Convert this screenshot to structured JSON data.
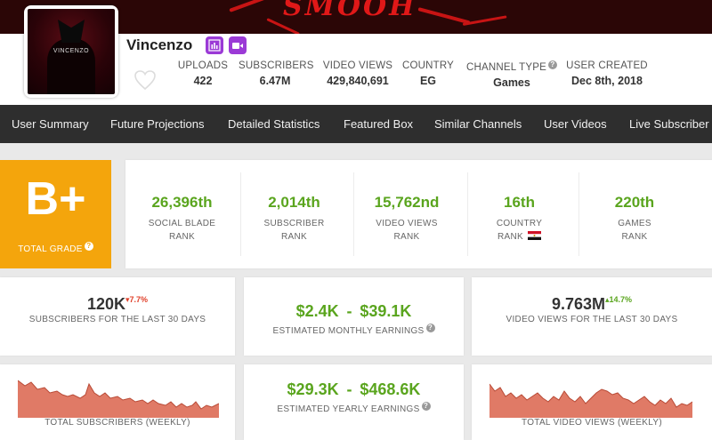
{
  "banner": {
    "text": "SMOOH"
  },
  "channel": {
    "name": "Vincenzo",
    "avatar_text": "VINCENZO",
    "badges": [
      "bar-chart-icon",
      "video-camera-icon"
    ]
  },
  "header_stats": [
    {
      "label": "UPLOADS",
      "value": "422"
    },
    {
      "label": "SUBSCRIBERS",
      "value": "6.47M"
    },
    {
      "label": "VIDEO VIEWS",
      "value": "429,840,691"
    },
    {
      "label": "COUNTRY",
      "value": "EG"
    },
    {
      "label": "CHANNEL TYPE",
      "value": "Games"
    },
    {
      "label": "USER CREATED",
      "value": "Dec 8th, 2018"
    }
  ],
  "nav": [
    "User Summary",
    "Future Projections",
    "Detailed Statistics",
    "Featured Box",
    "Similar Channels",
    "User Videos",
    "Live Subscriber C"
  ],
  "grade": {
    "value": "B+",
    "label": "TOTAL GRADE"
  },
  "ranks": [
    {
      "value": "26,396th",
      "line1": "SOCIAL BLADE",
      "line2": "RANK"
    },
    {
      "value": "2,014th",
      "line1": "SUBSCRIBER",
      "line2": "RANK"
    },
    {
      "value": "15,762nd",
      "line1": "VIDEO VIEWS",
      "line2": "RANK"
    },
    {
      "value": "16th",
      "line1": "COUNTRY",
      "line2": "RANK"
    },
    {
      "value": "220th",
      "line1": "GAMES",
      "line2": "RANK"
    }
  ],
  "subs30": {
    "value": "120K",
    "delta": "▾7.7%",
    "label": "SUBSCRIBERS FOR THE LAST 30 DAYS"
  },
  "monthly": {
    "low": "$2.4K",
    "sep": "-",
    "high": "$39.1K",
    "label": "ESTIMATED MONTHLY EARNINGS"
  },
  "views30": {
    "value": "9.763M",
    "delta": "▴14.7%",
    "label": "VIDEO VIEWS FOR THE LAST 30 DAYS"
  },
  "yearly": {
    "low": "$29.3K",
    "sep": "-",
    "high": "$468.6K",
    "label": "ESTIMATED YEARLY EARNINGS"
  },
  "subs_weekly": {
    "label": "TOTAL SUBSCRIBERS (WEEKLY)"
  },
  "views_weekly": {
    "label": "TOTAL VIDEO VIEWS (WEEKLY)"
  },
  "colors": {
    "grade": "#f4a50c",
    "green": "#5aa51e",
    "nav": "#2e2e2e",
    "badge": "#9b3ad6",
    "area": "#e07a66"
  }
}
